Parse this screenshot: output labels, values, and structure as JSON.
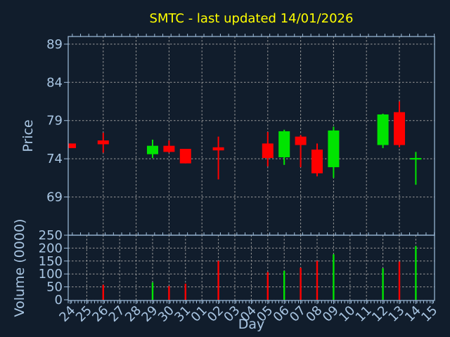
{
  "colors": {
    "background": "#111d2c",
    "title": "#ffff00",
    "axis_text": "#a9c6e3",
    "spine": "#a0bedc",
    "grid": "#9a9a9a",
    "up": "#00e400",
    "down": "#ff0000"
  },
  "chart_data": [
    {
      "type": "candlestick",
      "title": "SMTC - last updated 14/01/2026",
      "ylabel": "Price",
      "ylim": [
        64,
        90
      ],
      "yticks": [
        69,
        74,
        79,
        84,
        89
      ],
      "grid": "dashed gray; horizontal at yticks, vertical every 2nd day",
      "legend": "none",
      "x_tick_labels": [
        "24",
        "25",
        "26",
        "27",
        "28",
        "29",
        "30",
        "31",
        "01",
        "02",
        "03",
        "04",
        "05",
        "06",
        "07",
        "08",
        "09",
        "10",
        "11",
        "12",
        "13",
        "14",
        "15"
      ],
      "candles": [
        {
          "day": "24",
          "x_index": 0,
          "open": 76.0,
          "high": 76.0,
          "low": 75.4,
          "close": 75.4,
          "direction": "down"
        },
        {
          "day": "26",
          "x_index": 2,
          "open": 76.4,
          "high": 77.4,
          "low": 74.8,
          "close": 75.9,
          "direction": "down"
        },
        {
          "day": "29",
          "x_index": 5,
          "open": 74.6,
          "high": 76.5,
          "low": 74.1,
          "close": 75.7,
          "direction": "up"
        },
        {
          "day": "30",
          "x_index": 6,
          "open": 75.7,
          "high": 76.4,
          "low": 74.8,
          "close": 74.9,
          "direction": "down"
        },
        {
          "day": "31",
          "x_index": 7,
          "open": 75.3,
          "high": 75.3,
          "low": 73.4,
          "close": 73.4,
          "direction": "down"
        },
        {
          "day": "02",
          "x_index": 9,
          "open": 75.5,
          "high": 76.9,
          "low": 71.3,
          "close": 75.1,
          "direction": "down"
        },
        {
          "day": "05",
          "x_index": 12,
          "open": 76.0,
          "high": 77.5,
          "low": 73.0,
          "close": 74.1,
          "direction": "down"
        },
        {
          "day": "06",
          "x_index": 13,
          "open": 74.2,
          "high": 77.8,
          "low": 73.2,
          "close": 77.6,
          "direction": "up"
        },
        {
          "day": "07",
          "x_index": 14,
          "open": 76.9,
          "high": 77.1,
          "low": 72.9,
          "close": 75.8,
          "direction": "down"
        },
        {
          "day": "08",
          "x_index": 15,
          "open": 75.2,
          "high": 76.0,
          "low": 71.7,
          "close": 72.1,
          "direction": "down"
        },
        {
          "day": "09",
          "x_index": 16,
          "open": 72.9,
          "high": 78.2,
          "low": 71.5,
          "close": 77.7,
          "direction": "up"
        },
        {
          "day": "12",
          "x_index": 19,
          "open": 75.8,
          "high": 79.9,
          "low": 75.4,
          "close": 79.8,
          "direction": "up"
        },
        {
          "day": "13",
          "x_index": 20,
          "open": 80.1,
          "high": 81.5,
          "low": 75.5,
          "close": 75.8,
          "direction": "down"
        },
        {
          "day": "14",
          "x_index": 21,
          "open": 73.9,
          "high": 74.9,
          "low": 70.6,
          "close": 74.1,
          "direction": "up"
        }
      ]
    },
    {
      "type": "bar",
      "ylabel": "Volume (0000)",
      "xlabel": "Day",
      "ylim": [
        0,
        250
      ],
      "yticks": [
        0,
        50,
        100,
        150,
        200,
        250
      ],
      "grid": "dashed gray; horizontal at yticks, vertical every day",
      "bars": [
        {
          "day": "26",
          "x_index": 2,
          "volume": 58,
          "direction": "down"
        },
        {
          "day": "29",
          "x_index": 5,
          "volume": 67,
          "direction": "up"
        },
        {
          "day": "30",
          "x_index": 6,
          "volume": 53,
          "direction": "down"
        },
        {
          "day": "31",
          "x_index": 7,
          "volume": 62,
          "direction": "down"
        },
        {
          "day": "02",
          "x_index": 9,
          "volume": 151,
          "direction": "down"
        },
        {
          "day": "05",
          "x_index": 12,
          "volume": 107,
          "direction": "down"
        },
        {
          "day": "06",
          "x_index": 13,
          "volume": 112,
          "direction": "up"
        },
        {
          "day": "07",
          "x_index": 14,
          "volume": 124,
          "direction": "down"
        },
        {
          "day": "08",
          "x_index": 15,
          "volume": 151,
          "direction": "down"
        },
        {
          "day": "09",
          "x_index": 16,
          "volume": 176,
          "direction": "up"
        },
        {
          "day": "12",
          "x_index": 19,
          "volume": 122,
          "direction": "up"
        },
        {
          "day": "13",
          "x_index": 20,
          "volume": 148,
          "direction": "down"
        },
        {
          "day": "14",
          "x_index": 21,
          "volume": 208,
          "direction": "up"
        }
      ]
    }
  ]
}
